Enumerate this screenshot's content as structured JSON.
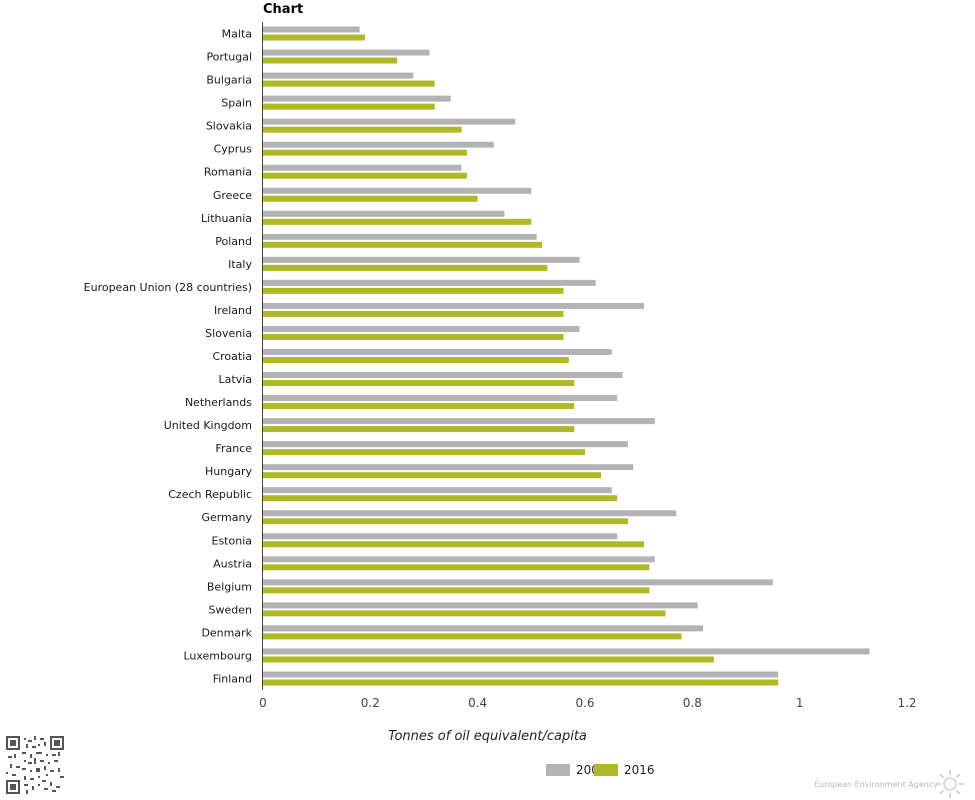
{
  "chart_data": {
    "type": "bar",
    "orientation": "horizontal",
    "title": "Chart",
    "xlabel": "Tonnes of oil equivalent/capita",
    "xlim": [
      0,
      1.2
    ],
    "xticks": [
      "0",
      "0.2",
      "0.4",
      "0.6",
      "0.8",
      "1",
      "1.2"
    ],
    "categories": [
      "Malta",
      "Portugal",
      "Bulgaria",
      "Spain",
      "Slovakia",
      "Cyprus",
      "Romania",
      "Greece",
      "Lithuania",
      "Poland",
      "Italy",
      "European Union (28 countries)",
      "Ireland",
      "Slovenia",
      "Croatia",
      "Latvia",
      "Netherlands",
      "United Kingdom",
      "France",
      "Hungary",
      "Czech Republic",
      "Germany",
      "Estonia",
      "Austria",
      "Belgium",
      "Sweden",
      "Denmark",
      "Luxembourg",
      "Finland"
    ],
    "series": [
      {
        "name": "200",
        "color": "#b3b3b3",
        "values": [
          0.18,
          0.31,
          0.28,
          0.35,
          0.47,
          0.43,
          0.37,
          0.5,
          0.45,
          0.51,
          0.59,
          0.62,
          0.71,
          0.59,
          0.65,
          0.67,
          0.66,
          0.73,
          0.68,
          0.69,
          0.65,
          0.77,
          0.66,
          0.73,
          0.95,
          0.81,
          0.82,
          1.13,
          0.96
        ]
      },
      {
        "name": "2016",
        "color": "#b0b826",
        "values": [
          0.19,
          0.25,
          0.32,
          0.32,
          0.37,
          0.38,
          0.38,
          0.4,
          0.5,
          0.52,
          0.53,
          0.56,
          0.56,
          0.56,
          0.57,
          0.58,
          0.58,
          0.58,
          0.6,
          0.63,
          0.66,
          0.68,
          0.71,
          0.72,
          0.72,
          0.75,
          0.78,
          0.84,
          0.96
        ]
      }
    ],
    "grid": false,
    "legend_position": "bottom"
  },
  "footer": {
    "publisher": "European Environment Agency"
  }
}
